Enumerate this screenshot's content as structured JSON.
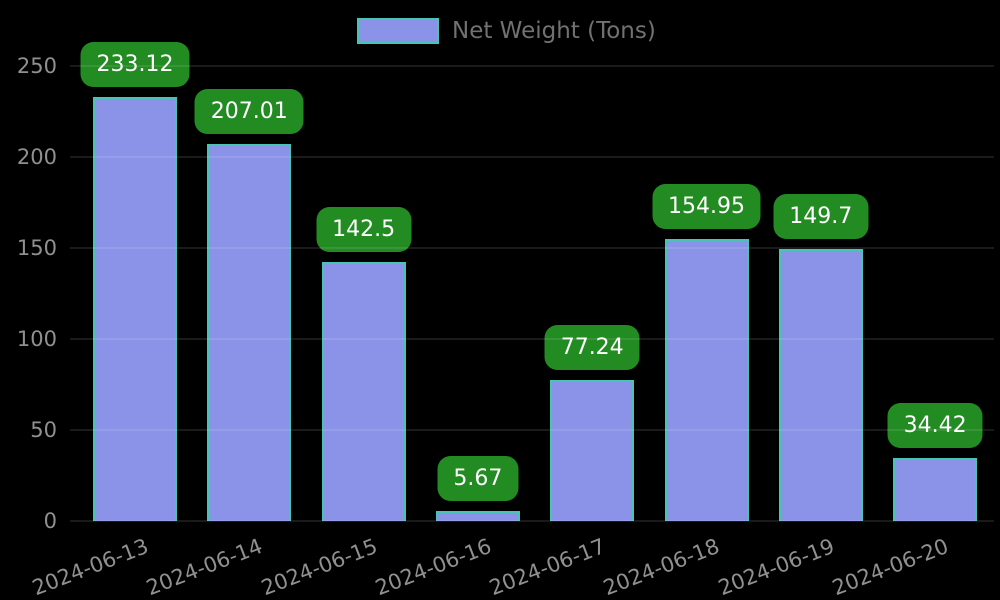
{
  "chart_data": {
    "type": "bar",
    "title": "",
    "xlabel": "",
    "ylabel": "",
    "categories": [
      "2024-06-13",
      "2024-06-14",
      "2024-06-15",
      "2024-06-16",
      "2024-06-17",
      "2024-06-18",
      "2024-06-19",
      "2024-06-20"
    ],
    "series": [
      {
        "name": "Net Weight (Tons)",
        "values": [
          233.12,
          207.01,
          142.5,
          5.67,
          77.24,
          154.95,
          149.7,
          34.42
        ],
        "value_labels": [
          "233.12",
          "207.01",
          "142.5",
          "5.67",
          "77.24",
          "154.95",
          "149.7",
          "34.42"
        ]
      }
    ],
    "ylim": [
      0,
      250
    ],
    "yticks": [
      0,
      50,
      100,
      150,
      200,
      250
    ],
    "grid": "faint horizontal gridlines drawn above bars",
    "legend_position": "top-center",
    "x_tick_rotation_deg": -21,
    "colors": {
      "background": "#000000",
      "bar_fill": "#8b93e8",
      "bar_border": "#46c5b4",
      "value_badge_bg": "#228b22",
      "value_badge_text": "#ffffff",
      "tick_text": "#909090",
      "legend_text": "#717171",
      "gridline": "rgba(255,255,255,0.10)"
    }
  },
  "legend": {
    "label": "Net Weight (Tons)"
  }
}
